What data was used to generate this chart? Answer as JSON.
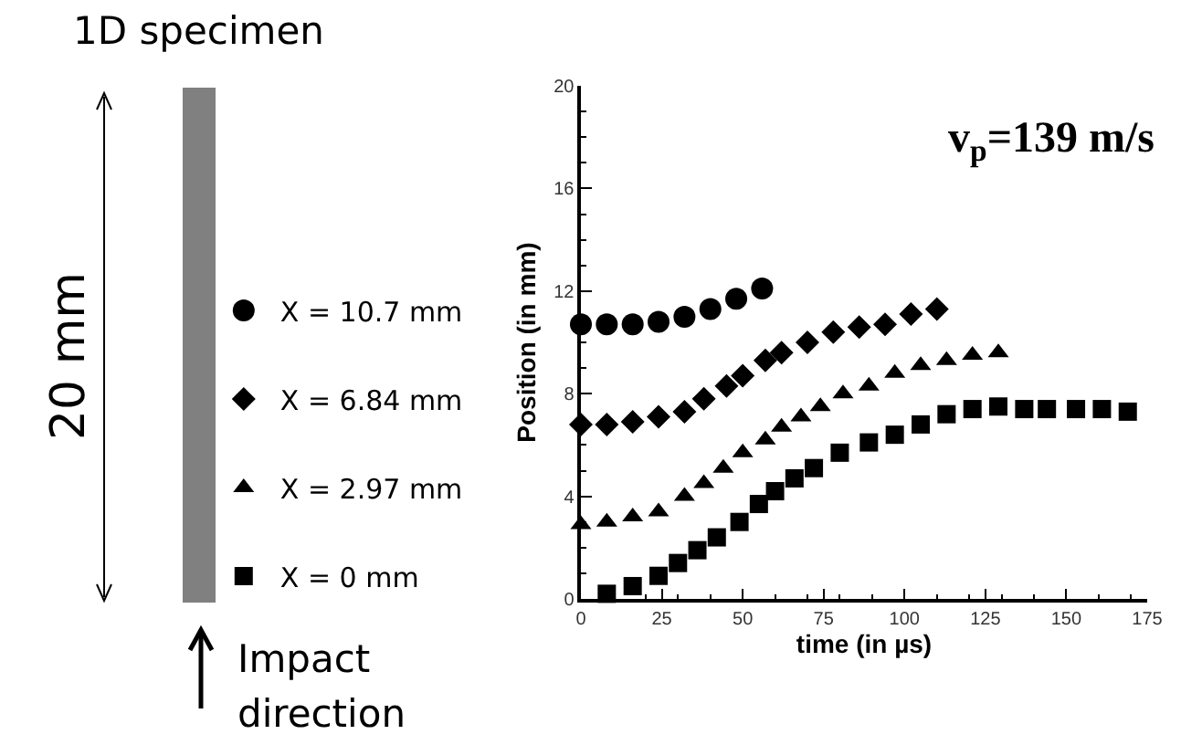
{
  "chart_data": {
    "type": "scatter",
    "xlabel": "time (in µs)",
    "ylabel": "Position (in mm)",
    "xlim": [
      0,
      175
    ],
    "xticks": [
      0,
      25,
      50,
      75,
      100,
      125,
      150,
      175
    ],
    "ylim": [
      0,
      20
    ],
    "yticks": [
      0,
      4,
      8,
      12,
      16,
      20
    ],
    "legend": "left",
    "annotations": [
      "1D specimen",
      "20 mm",
      "Impact direction",
      "v$_{p}$=139 m/s"
    ],
    "series": [
      {
        "name": "X = 10.7 mm",
        "color": "#000000",
        "marker": "circle",
        "x": [
          0,
          8,
          16,
          24,
          32,
          40,
          48,
          56
        ],
        "values": [
          10.7,
          10.7,
          10.7,
          10.8,
          11.0,
          11.3,
          11.7,
          12.1
        ]
      },
      {
        "name": "X = 6.84 mm",
        "color": "#000000",
        "marker": "diamond",
        "x": [
          0,
          8,
          16,
          24,
          32,
          38,
          45,
          50,
          57,
          62,
          70,
          78,
          86,
          94,
          102,
          110
        ],
        "values": [
          6.8,
          6.8,
          6.9,
          7.1,
          7.3,
          7.8,
          8.3,
          8.7,
          9.3,
          9.6,
          10.0,
          10.4,
          10.6,
          10.7,
          11.1,
          11.3
        ]
      },
      {
        "name": "X = 2.97 mm",
        "color": "#000000",
        "marker": "triangle",
        "x": [
          0,
          8,
          16,
          24,
          32,
          38,
          44,
          50,
          57,
          62,
          68,
          74,
          81,
          89,
          97,
          105,
          113,
          121,
          129
        ],
        "values": [
          2.9,
          3.0,
          3.2,
          3.4,
          4.0,
          4.5,
          5.1,
          5.7,
          6.2,
          6.7,
          7.1,
          7.5,
          8.0,
          8.3,
          8.8,
          9.1,
          9.3,
          9.5,
          9.6
        ]
      },
      {
        "name": "X = 0 mm",
        "color": "#000000",
        "marker": "square",
        "x": [
          8,
          16,
          24,
          30,
          36,
          42,
          49,
          55,
          60,
          66,
          72,
          80,
          89,
          97,
          105,
          113,
          121,
          129,
          137,
          144,
          153,
          161,
          169
        ],
        "values": [
          0.2,
          0.5,
          0.9,
          1.4,
          1.9,
          2.4,
          3.0,
          3.7,
          4.2,
          4.7,
          5.1,
          5.7,
          6.1,
          6.4,
          6.8,
          7.2,
          7.4,
          7.5,
          7.4,
          7.4,
          7.4,
          7.4,
          7.3
        ]
      }
    ]
  }
}
